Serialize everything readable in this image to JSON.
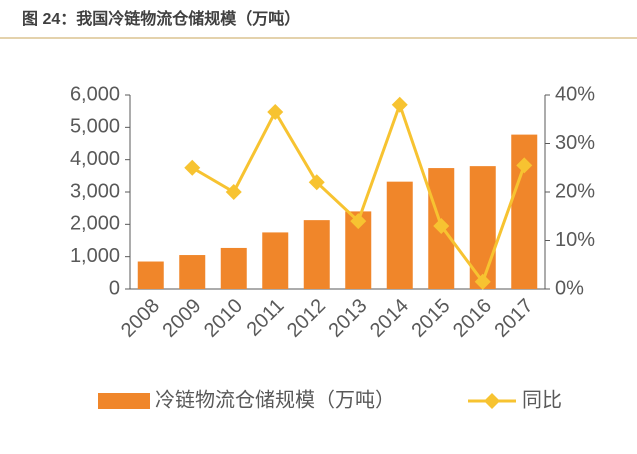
{
  "chart_data": {
    "type": "bar_line",
    "title": "图 24：我国冷链物流仓储规模（万吨）",
    "categories": [
      "2008",
      "2009",
      "2010",
      "2011",
      "2012",
      "2013",
      "2014",
      "2015",
      "2016",
      "2017"
    ],
    "series": [
      {
        "name": "冷链物流仓储规模（万吨）",
        "color": "#f0862a",
        "type": "bar",
        "axis": "y",
        "values": [
          850,
          1050,
          1270,
          1750,
          2130,
          2400,
          3320,
          3740,
          3800,
          4775
        ]
      },
      {
        "name": "同比",
        "color": "#f7c331",
        "type": "line",
        "axis": "y2",
        "values": [
          null,
          25,
          20,
          36.5,
          22,
          14,
          38,
          13,
          1.5,
          25.5
        ]
      }
    ],
    "ylim": [
      0,
      6000
    ],
    "yticks": [
      0,
      {
        "value": 1000,
        "label": "1,000"
      },
      {
        "value": 2000,
        "label": "2,000"
      },
      {
        "value": 3000,
        "label": "3,000"
      },
      {
        "value": 4000,
        "label": "4,000"
      },
      {
        "value": 5000,
        "label": "5,000"
      },
      {
        "value": 6000,
        "label": "6,000"
      }
    ],
    "y2lim": [
      0,
      40
    ],
    "y2ticks": [
      {
        "value": 0,
        "label": "0%"
      },
      {
        "value": 10,
        "label": "10%"
      },
      {
        "value": 20,
        "label": "20%"
      },
      {
        "value": 30,
        "label": "30%"
      },
      {
        "value": 40,
        "label": "40%"
      }
    ],
    "legend": "bottom"
  }
}
